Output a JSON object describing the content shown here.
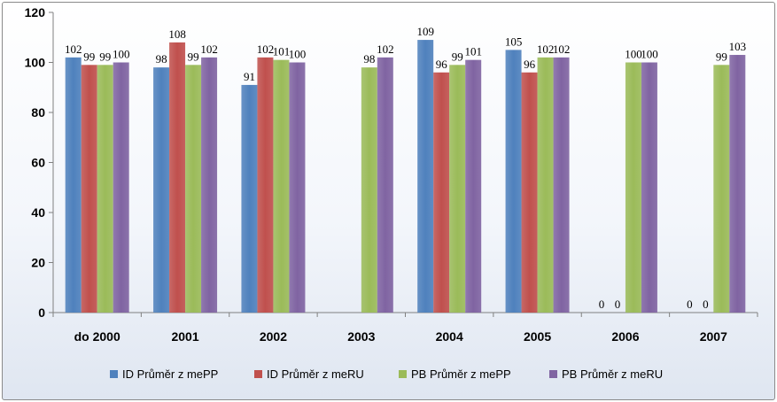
{
  "chart_data": {
    "type": "bar",
    "title": "",
    "xlabel": "",
    "ylabel": "",
    "ylim": [
      0,
      120
    ],
    "yticks": [
      0,
      20,
      40,
      60,
      80,
      100,
      120
    ],
    "grid": false,
    "legend_position": "bottom",
    "categories": [
      "do 2000",
      "2001",
      "2002",
      "2003",
      "2004",
      "2005",
      "2006",
      "2007"
    ],
    "series": [
      {
        "name": "ID Průměr z mePP",
        "color": "#4f81bd",
        "values": [
          102,
          98,
          91,
          null,
          109,
          105,
          0,
          0
        ],
        "labels": [
          "102",
          "98",
          "91",
          "",
          "109",
          "105",
          "0",
          "0"
        ]
      },
      {
        "name": "ID Průměr z meRU",
        "color": "#c0504d",
        "values": [
          99,
          108,
          102,
          null,
          96,
          96,
          0,
          0
        ],
        "labels": [
          "99",
          "108",
          "102",
          "",
          "96",
          "96",
          "0",
          "0"
        ]
      },
      {
        "name": "PB Průměr z mePP",
        "color": "#9bbb59",
        "values": [
          99,
          99,
          101,
          98,
          99,
          102,
          100,
          99
        ],
        "labels": [
          "99",
          "99",
          "101",
          "98",
          "99",
          "102",
          "100",
          "99"
        ]
      },
      {
        "name": "PB Průměr z meRU",
        "color": "#8064a2",
        "values": [
          100,
          102,
          100,
          102,
          101,
          102,
          100,
          103
        ],
        "labels": [
          "100",
          "102",
          "100",
          "102",
          "101",
          "102",
          "100",
          "103"
        ]
      }
    ]
  }
}
